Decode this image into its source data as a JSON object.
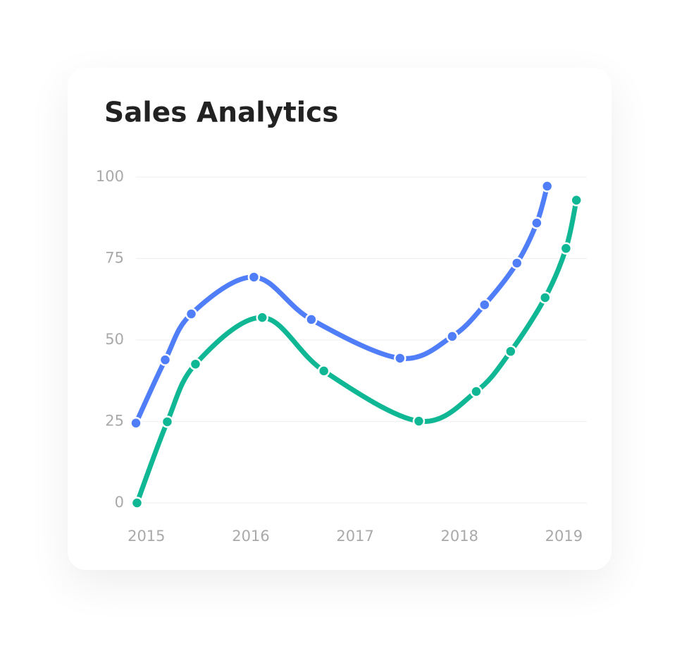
{
  "chart_data": {
    "type": "line",
    "title": "Sales Analytics",
    "xlim": [
      2014.9,
      2019.22
    ],
    "xticks": [
      2015,
      2016,
      2017,
      2018,
      2019
    ],
    "ylim": [
      0,
      100
    ],
    "yticks": [
      0,
      25,
      50,
      75,
      100
    ],
    "grid": true,
    "series": [
      {
        "color": "#4f7ef8",
        "x": [
          2014.9,
          2015.18,
          2015.43,
          2016.03,
          2016.58,
          2017.43,
          2017.93,
          2018.24,
          2018.55,
          2018.74,
          2018.84
        ],
        "values": [
          24.5,
          43.9,
          58,
          69.3,
          56.3,
          44.4,
          51.1,
          60.8,
          73.6,
          85.9,
          97.2
        ]
      },
      {
        "color": "#10b795",
        "x": [
          2014.91,
          2015.2,
          2015.47,
          2016.11,
          2016.7,
          2017.61,
          2018.16,
          2018.49,
          2018.82,
          2019.02,
          2019.12
        ],
        "values": [
          0,
          24.9,
          42.6,
          56.9,
          40.5,
          25.1,
          34.2,
          46.5,
          63,
          78.1,
          92.9
        ]
      }
    ]
  }
}
